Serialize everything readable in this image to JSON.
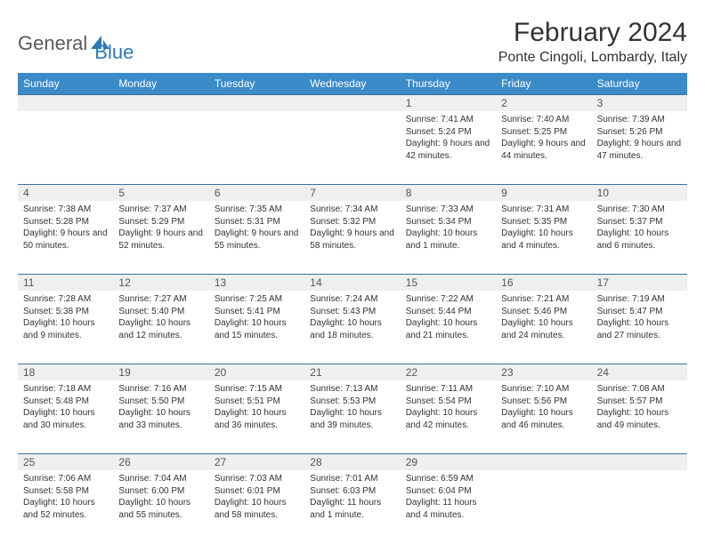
{
  "logo": {
    "text1": "General",
    "text2": "Blue"
  },
  "title": "February 2024",
  "location": "Ponte Cingoli, Lombardy, Italy",
  "colors": {
    "header_bg": "#3b8bc8",
    "header_text": "#ffffff",
    "divider": "#3b6fa0",
    "daynum_bg": "#efefef",
    "logo_gray": "#5a5a5a",
    "logo_blue": "#2a7ab8"
  },
  "weekdays": [
    "Sunday",
    "Monday",
    "Tuesday",
    "Wednesday",
    "Thursday",
    "Friday",
    "Saturday"
  ],
  "weeks": [
    [
      null,
      null,
      null,
      null,
      {
        "n": "1",
        "sr": "Sunrise: 7:41 AM",
        "ss": "Sunset: 5:24 PM",
        "dl": "Daylight: 9 hours and 42 minutes."
      },
      {
        "n": "2",
        "sr": "Sunrise: 7:40 AM",
        "ss": "Sunset: 5:25 PM",
        "dl": "Daylight: 9 hours and 44 minutes."
      },
      {
        "n": "3",
        "sr": "Sunrise: 7:39 AM",
        "ss": "Sunset: 5:26 PM",
        "dl": "Daylight: 9 hours and 47 minutes."
      }
    ],
    [
      {
        "n": "4",
        "sr": "Sunrise: 7:38 AM",
        "ss": "Sunset: 5:28 PM",
        "dl": "Daylight: 9 hours and 50 minutes."
      },
      {
        "n": "5",
        "sr": "Sunrise: 7:37 AM",
        "ss": "Sunset: 5:29 PM",
        "dl": "Daylight: 9 hours and 52 minutes."
      },
      {
        "n": "6",
        "sr": "Sunrise: 7:35 AM",
        "ss": "Sunset: 5:31 PM",
        "dl": "Daylight: 9 hours and 55 minutes."
      },
      {
        "n": "7",
        "sr": "Sunrise: 7:34 AM",
        "ss": "Sunset: 5:32 PM",
        "dl": "Daylight: 9 hours and 58 minutes."
      },
      {
        "n": "8",
        "sr": "Sunrise: 7:33 AM",
        "ss": "Sunset: 5:34 PM",
        "dl": "Daylight: 10 hours and 1 minute."
      },
      {
        "n": "9",
        "sr": "Sunrise: 7:31 AM",
        "ss": "Sunset: 5:35 PM",
        "dl": "Daylight: 10 hours and 4 minutes."
      },
      {
        "n": "10",
        "sr": "Sunrise: 7:30 AM",
        "ss": "Sunset: 5:37 PM",
        "dl": "Daylight: 10 hours and 6 minutes."
      }
    ],
    [
      {
        "n": "11",
        "sr": "Sunrise: 7:28 AM",
        "ss": "Sunset: 5:38 PM",
        "dl": "Daylight: 10 hours and 9 minutes."
      },
      {
        "n": "12",
        "sr": "Sunrise: 7:27 AM",
        "ss": "Sunset: 5:40 PM",
        "dl": "Daylight: 10 hours and 12 minutes."
      },
      {
        "n": "13",
        "sr": "Sunrise: 7:25 AM",
        "ss": "Sunset: 5:41 PM",
        "dl": "Daylight: 10 hours and 15 minutes."
      },
      {
        "n": "14",
        "sr": "Sunrise: 7:24 AM",
        "ss": "Sunset: 5:43 PM",
        "dl": "Daylight: 10 hours and 18 minutes."
      },
      {
        "n": "15",
        "sr": "Sunrise: 7:22 AM",
        "ss": "Sunset: 5:44 PM",
        "dl": "Daylight: 10 hours and 21 minutes."
      },
      {
        "n": "16",
        "sr": "Sunrise: 7:21 AM",
        "ss": "Sunset: 5:46 PM",
        "dl": "Daylight: 10 hours and 24 minutes."
      },
      {
        "n": "17",
        "sr": "Sunrise: 7:19 AM",
        "ss": "Sunset: 5:47 PM",
        "dl": "Daylight: 10 hours and 27 minutes."
      }
    ],
    [
      {
        "n": "18",
        "sr": "Sunrise: 7:18 AM",
        "ss": "Sunset: 5:48 PM",
        "dl": "Daylight: 10 hours and 30 minutes."
      },
      {
        "n": "19",
        "sr": "Sunrise: 7:16 AM",
        "ss": "Sunset: 5:50 PM",
        "dl": "Daylight: 10 hours and 33 minutes."
      },
      {
        "n": "20",
        "sr": "Sunrise: 7:15 AM",
        "ss": "Sunset: 5:51 PM",
        "dl": "Daylight: 10 hours and 36 minutes."
      },
      {
        "n": "21",
        "sr": "Sunrise: 7:13 AM",
        "ss": "Sunset: 5:53 PM",
        "dl": "Daylight: 10 hours and 39 minutes."
      },
      {
        "n": "22",
        "sr": "Sunrise: 7:11 AM",
        "ss": "Sunset: 5:54 PM",
        "dl": "Daylight: 10 hours and 42 minutes."
      },
      {
        "n": "23",
        "sr": "Sunrise: 7:10 AM",
        "ss": "Sunset: 5:56 PM",
        "dl": "Daylight: 10 hours and 46 minutes."
      },
      {
        "n": "24",
        "sr": "Sunrise: 7:08 AM",
        "ss": "Sunset: 5:57 PM",
        "dl": "Daylight: 10 hours and 49 minutes."
      }
    ],
    [
      {
        "n": "25",
        "sr": "Sunrise: 7:06 AM",
        "ss": "Sunset: 5:58 PM",
        "dl": "Daylight: 10 hours and 52 minutes."
      },
      {
        "n": "26",
        "sr": "Sunrise: 7:04 AM",
        "ss": "Sunset: 6:00 PM",
        "dl": "Daylight: 10 hours and 55 minutes."
      },
      {
        "n": "27",
        "sr": "Sunrise: 7:03 AM",
        "ss": "Sunset: 6:01 PM",
        "dl": "Daylight: 10 hours and 58 minutes."
      },
      {
        "n": "28",
        "sr": "Sunrise: 7:01 AM",
        "ss": "Sunset: 6:03 PM",
        "dl": "Daylight: 11 hours and 1 minute."
      },
      {
        "n": "29",
        "sr": "Sunrise: 6:59 AM",
        "ss": "Sunset: 6:04 PM",
        "dl": "Daylight: 11 hours and 4 minutes."
      },
      null,
      null
    ]
  ]
}
